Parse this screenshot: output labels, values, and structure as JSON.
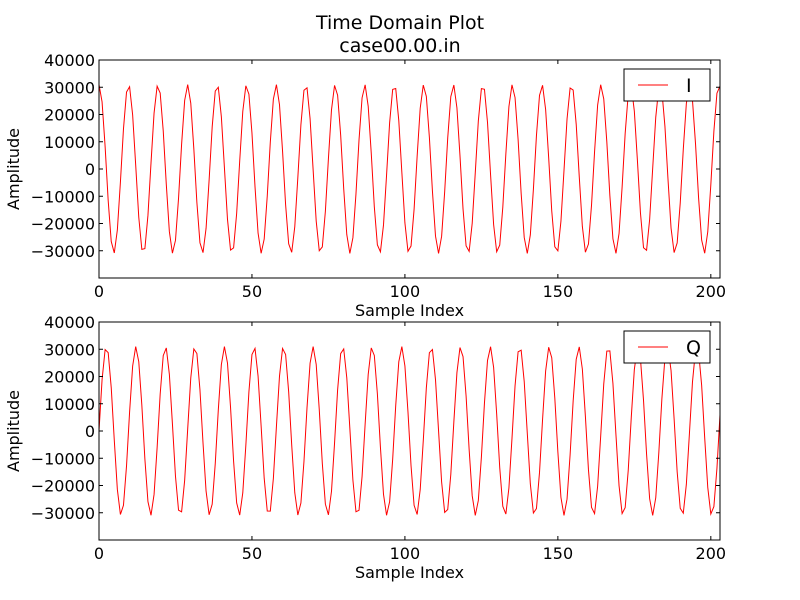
{
  "figure": {
    "title": "Time Domain Plot",
    "subtitle": "case00.00.in"
  },
  "chart_data": [
    {
      "type": "line",
      "series": [
        {
          "name": "I",
          "color": "#ff0000",
          "x_start": 0,
          "x_step": 1,
          "generator": {
            "kind": "cosine",
            "amplitude": 31000,
            "cycles_per_sample": 0.1036,
            "phase_deg": 0
          }
        }
      ],
      "xlabel": "Sample Index",
      "ylabel": "Amplitude",
      "xlim": [
        0,
        203
      ],
      "ylim": [
        -40000,
        40000
      ],
      "xticks": [
        0,
        50,
        100,
        150,
        200
      ],
      "yticks": [
        -30000,
        -20000,
        -10000,
        0,
        10000,
        20000,
        30000,
        40000
      ],
      "grid": false,
      "legend": "top-right"
    },
    {
      "type": "line",
      "series": [
        {
          "name": "Q",
          "color": "#ff0000",
          "x_start": 0,
          "x_step": 1,
          "generator": {
            "kind": "sine",
            "amplitude": 31000,
            "cycles_per_sample": 0.1036,
            "phase_deg": 0
          }
        }
      ],
      "xlabel": "Sample Index",
      "ylabel": "Amplitude",
      "xlim": [
        0,
        203
      ],
      "ylim": [
        -40000,
        40000
      ],
      "xticks": [
        0,
        50,
        100,
        150,
        200
      ],
      "yticks": [
        -30000,
        -20000,
        -10000,
        0,
        10000,
        20000,
        30000,
        40000
      ],
      "grid": false,
      "legend": "top-right"
    }
  ]
}
